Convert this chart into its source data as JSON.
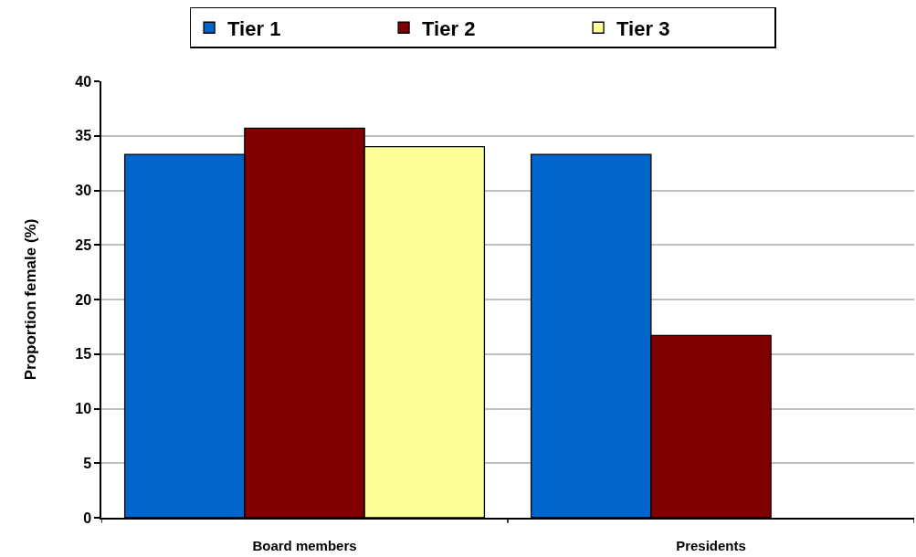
{
  "chart_data": {
    "type": "bar",
    "ylabel": "Proportion female (%)",
    "categories": [
      "Board members",
      "Presidents"
    ],
    "series": [
      {
        "name": "Tier 1",
        "color": "#0066cc",
        "values": [
          33.3,
          33.3
        ]
      },
      {
        "name": "Tier 2",
        "color": "#800000",
        "values": [
          35.7,
          16.7
        ]
      },
      {
        "name": "Tier 3",
        "color": "#ffff99",
        "values": [
          34.0,
          null
        ]
      }
    ],
    "ylim": [
      0,
      40
    ],
    "yticks": [
      0,
      5,
      10,
      15,
      20,
      25,
      30,
      35,
      40
    ],
    "grid": "y",
    "legend": "top"
  }
}
